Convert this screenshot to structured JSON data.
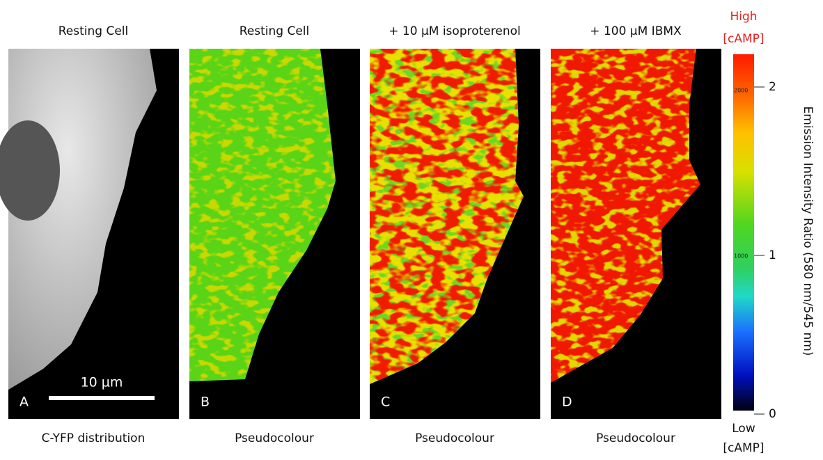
{
  "panels": [
    {
      "title": "Resting Cell",
      "letter": "A",
      "caption": "C-YFP distribution",
      "scale_bar": "10 µm"
    },
    {
      "title": "Resting Cell",
      "letter": "B",
      "caption": "Pseudocolour"
    },
    {
      "title": "+ 10 µM isoproterenol",
      "letter": "C",
      "caption": "Pseudocolour"
    },
    {
      "title": "+ 100 µM IBMX",
      "letter": "D",
      "caption": "Pseudocolour"
    }
  ],
  "colorbar": {
    "high": "High",
    "high_unit": "[cAMP]",
    "low": "Low",
    "low_unit": "[cAMP]",
    "ticks": [
      "2",
      "1",
      "0"
    ],
    "inner_labels": [
      "2000",
      "1000"
    ],
    "label": "Emission Intensity Ratio (580 nm/545 nm)"
  }
}
